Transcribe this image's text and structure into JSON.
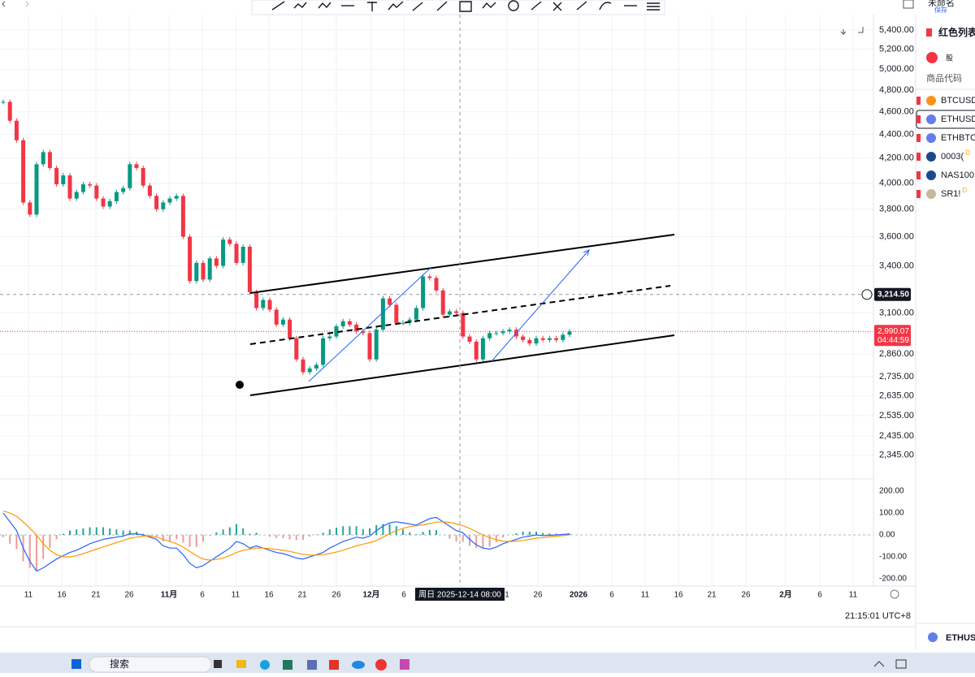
{
  "header": {
    "doc_title": "未命名",
    "save": "保存"
  },
  "chart": {
    "price_scale": "log",
    "yticks": [
      {
        "value": 5400,
        "label": "5,400.00"
      },
      {
        "value": 5200,
        "label": "5,200.00"
      },
      {
        "value": 5000,
        "label": "5,000.00"
      },
      {
        "value": 4800,
        "label": "4,800.00"
      },
      {
        "value": 4600,
        "label": "4,600.00"
      },
      {
        "value": 4400,
        "label": "4,400.00"
      },
      {
        "value": 4200,
        "label": "4,200.00"
      },
      {
        "value": 4000,
        "label": "4,000.00"
      },
      {
        "value": 3800,
        "label": "3,800.00"
      },
      {
        "value": 3600,
        "label": "3,600.00"
      },
      {
        "value": 3400,
        "label": "3,400.00"
      },
      {
        "value": 3100,
        "label": "3,100.00"
      },
      {
        "value": 2860,
        "label": "2,860.00"
      },
      {
        "value": 2735,
        "label": "2,735.00"
      },
      {
        "value": 2635,
        "label": "2,635.00"
      },
      {
        "value": 2535,
        "label": "2,535.00"
      },
      {
        "value": 2435,
        "label": "2,435.00"
      },
      {
        "value": 2345,
        "label": "2,345.00"
      }
    ],
    "closes": [
      4690,
      4520,
      4350,
      3850,
      3760,
      4150,
      4250,
      4120,
      3990,
      4060,
      3880,
      3930,
      3990,
      3980,
      3880,
      3820,
      3860,
      3930,
      3960,
      4150,
      4120,
      3980,
      3900,
      3800,
      3850,
      3880,
      3900,
      3600,
      3300,
      3420,
      3310,
      3450,
      3400,
      3580,
      3550,
      3420,
      3530,
      3230,
      3130,
      3180,
      3120,
      3030,
      3060,
      2950,
      2830,
      2760,
      2780,
      2800,
      2950,
      2960,
      3020,
      3050,
      3030,
      2990,
      2980,
      2830,
      3000,
      3190,
      3150,
      3040,
      3040,
      3060,
      3130,
      3330,
      3320,
      3240,
      3090,
      3110,
      3100,
      2960,
      2930,
      2830,
      2950,
      2980,
      2980,
      2990,
      3000,
      2960,
      2940,
      2920,
      2950,
      2940,
      2950,
      2940,
      2970,
      2990
    ],
    "last_price": {
      "value": 2990.07,
      "label": "2,990.07"
    },
    "countdown": "04:44:59",
    "crosshair_price": {
      "value": 3214.5,
      "label": "3,214.50"
    },
    "crosshair_time": "周日 2025-12-14   08:00",
    "time_labels": [
      "11",
      "16",
      "21",
      "26",
      "11月",
      "6",
      "11",
      "16",
      "21",
      "26",
      "12月",
      "6",
      "1",
      "26",
      "2026",
      "6",
      "11",
      "16",
      "21",
      "26",
      "2月",
      "6",
      "11"
    ],
    "macd": {
      "yticks": [
        {
          "value": 200,
          "label": "200.00"
        },
        {
          "value": 100,
          "label": "100.00"
        },
        {
          "value": 0,
          "label": "0.00"
        },
        {
          "value": -100,
          "label": "-100.00"
        },
        {
          "value": -200,
          "label": "-200.00"
        }
      ],
      "macd": [
        100,
        60,
        20,
        -60,
        -120,
        -165,
        -150,
        -130,
        -110,
        -95,
        -80,
        -70,
        -55,
        -40,
        -30,
        -20,
        -15,
        -10,
        -5,
        5,
        5,
        0,
        -10,
        -20,
        -50,
        -60,
        -60,
        -90,
        -130,
        -150,
        -140,
        -120,
        -100,
        -80,
        -60,
        -30,
        -40,
        -60,
        -50,
        -60,
        -70,
        -80,
        -85,
        -95,
        -105,
        -110,
        -100,
        -90,
        -80,
        -60,
        -45,
        -30,
        -20,
        -10,
        -15,
        -5,
        20,
        40,
        55,
        60,
        55,
        50,
        45,
        60,
        75,
        80,
        60,
        40,
        20,
        10,
        -20,
        -45,
        -60,
        -65,
        -55,
        -40,
        -30,
        -20,
        -10,
        -5,
        0,
        -3,
        -2,
        0,
        2,
        5
      ],
      "signal": [
        110,
        100,
        85,
        60,
        30,
        0,
        -40,
        -70,
        -90,
        -100,
        -100,
        -95,
        -85,
        -75,
        -65,
        -55,
        -45,
        -35,
        -25,
        -15,
        -10,
        -5,
        -5,
        -10,
        -20,
        -30,
        -40,
        -55,
        -75,
        -95,
        -110,
        -115,
        -112,
        -105,
        -95,
        -80,
        -70,
        -65,
        -60,
        -60,
        -62,
        -66,
        -70,
        -75,
        -82,
        -88,
        -92,
        -92,
        -90,
        -85,
        -78,
        -70,
        -60,
        -50,
        -42,
        -35,
        -25,
        -10,
        5,
        20,
        30,
        38,
        42,
        46,
        52,
        58,
        60,
        57,
        50,
        42,
        30,
        15,
        0,
        -12,
        -22,
        -28,
        -30,
        -28,
        -25,
        -20,
        -15,
        -12,
        -9,
        -6,
        -3,
        0
      ],
      "hist": [
        -10,
        -40,
        -65,
        -120,
        -150,
        -165,
        -110,
        -60,
        -20,
        5,
        20,
        25,
        30,
        35,
        35,
        35,
        30,
        25,
        20,
        20,
        15,
        5,
        -5,
        -10,
        -30,
        -30,
        -20,
        -35,
        -55,
        -55,
        -30,
        -5,
        12,
        25,
        35,
        50,
        30,
        5,
        10,
        0,
        -8,
        -14,
        -15,
        -20,
        -23,
        -22,
        -8,
        2,
        10,
        25,
        33,
        40,
        40,
        40,
        27,
        30,
        45,
        50,
        50,
        40,
        25,
        12,
        3,
        14,
        23,
        22,
        0,
        -17,
        -30,
        -32,
        -50,
        -60,
        -60,
        -53,
        -33,
        -12,
        0,
        8,
        15,
        15,
        15,
        9,
        7,
        6,
        5,
        5
      ]
    },
    "clock": "21:15:01 UTC+8"
  },
  "watchlist": {
    "title": "红色列表",
    "filter": "股",
    "column": "商品代码",
    "items": [
      {
        "symbol": "BTCUSDT"
      },
      {
        "symbol": "ETHUSDT"
      },
      {
        "symbol": "ETHBTC"
      },
      {
        "symbol": "0003(",
        "badge": "D"
      },
      {
        "symbol": "NAS100"
      },
      {
        "symbol": "SR1!",
        "badge": "D"
      }
    ],
    "footer_symbol": "ETHUSDT"
  },
  "taskbar": {
    "search": "搜索"
  }
}
